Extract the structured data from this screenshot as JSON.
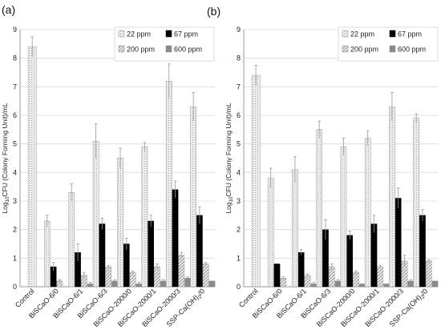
{
  "colors": {
    "s22": "#f0f0f0",
    "s67": "#000000",
    "s200": "#e4e4e4",
    "s600": "#8a8a8a",
    "axis": "#9a9a9a",
    "grid": "#dcdcdc",
    "error": "#999999"
  },
  "chart_data": [
    {
      "type": "bar",
      "panel_label": "(a)",
      "ylabel": "Log10CFU (Colony Forming Unit)/mL",
      "ylim": [
        0,
        9
      ],
      "yticks": [
        "0",
        "1",
        "2",
        "3",
        "4",
        "5",
        "6",
        "7",
        "8",
        "9"
      ],
      "categories": [
        "Control",
        "BiSCaO-6/0",
        "BiSCaO-6/1",
        "BiSCaO-6/3",
        "BiSCaO-2000/0",
        "BiSCaO-2000/1",
        "BiSCaO-2000/3",
        "SSP-Ca(OH)2/0"
      ],
      "legend_position": "top-right",
      "series": [
        {
          "name": "22 ppm",
          "values": [
            8.4,
            2.3,
            3.3,
            5.1,
            4.5,
            4.9,
            7.2,
            6.3
          ],
          "errors": [
            0.35,
            0.2,
            0.3,
            0.6,
            0.35,
            0.15,
            0.6,
            0.5
          ]
        },
        {
          "name": "67 ppm",
          "values": [
            null,
            0.7,
            1.2,
            2.2,
            1.5,
            2.3,
            3.4,
            2.5
          ],
          "errors": [
            null,
            0.15,
            0.3,
            0.2,
            0.2,
            0.2,
            0.3,
            0.3
          ]
        },
        {
          "name": "200 ppm",
          "values": [
            null,
            0.2,
            0.4,
            0.7,
            0.5,
            0.7,
            1.1,
            0.8
          ],
          "errors": [
            null,
            0.05,
            0.1,
            0.05,
            0.05,
            0.1,
            0.1,
            0.05
          ]
        },
        {
          "name": "600 ppm",
          "values": [
            null,
            0.0,
            0.1,
            0.2,
            0.1,
            0.2,
            0.3,
            0.2
          ],
          "errors": [
            null,
            0.0,
            0.05,
            0.05,
            0.05,
            0.05,
            0.05,
            0.0
          ]
        }
      ]
    },
    {
      "type": "bar",
      "panel_label": "(b)",
      "ylabel": "Log10CFU (Colony Forming Unit)/mL",
      "ylim": [
        0,
        9
      ],
      "yticks": [
        "0",
        "1",
        "2",
        "3",
        "4",
        "5",
        "6",
        "7",
        "8",
        "9"
      ],
      "categories": [
        "Control",
        "BiSCaO-6/0",
        "BiSCaO-6/1",
        "BiSCaO-6/3",
        "BiSCaO-2000/0",
        "BiSCaO-2000/1",
        "BiSCaO-2000/3",
        "SSP-Ca(OH)2/0"
      ],
      "legend_position": "top-right",
      "series": [
        {
          "name": "22 ppm",
          "values": [
            7.4,
            3.8,
            4.1,
            5.5,
            4.9,
            5.2,
            6.3,
            5.9
          ],
          "errors": [
            0.35,
            0.35,
            0.45,
            0.3,
            0.3,
            0.25,
            0.5,
            0.15
          ]
        },
        {
          "name": "67 ppm",
          "values": [
            null,
            0.8,
            1.2,
            2.0,
            1.8,
            2.2,
            3.1,
            2.5
          ],
          "errors": [
            null,
            0.0,
            0.1,
            0.35,
            0.15,
            0.3,
            0.35,
            0.2
          ]
        },
        {
          "name": "200 ppm",
          "values": [
            null,
            0.3,
            0.4,
            0.7,
            0.5,
            0.7,
            0.9,
            0.9
          ],
          "errors": [
            null,
            0.05,
            0.05,
            0.1,
            0.05,
            0.05,
            0.2,
            0.05
          ]
        },
        {
          "name": "600 ppm",
          "values": [
            null,
            0.0,
            0.1,
            0.2,
            0.1,
            0.1,
            0.2,
            0.2
          ],
          "errors": [
            null,
            0.0,
            0.05,
            0.05,
            0.0,
            0.0,
            0.05,
            0.0
          ]
        }
      ]
    }
  ]
}
